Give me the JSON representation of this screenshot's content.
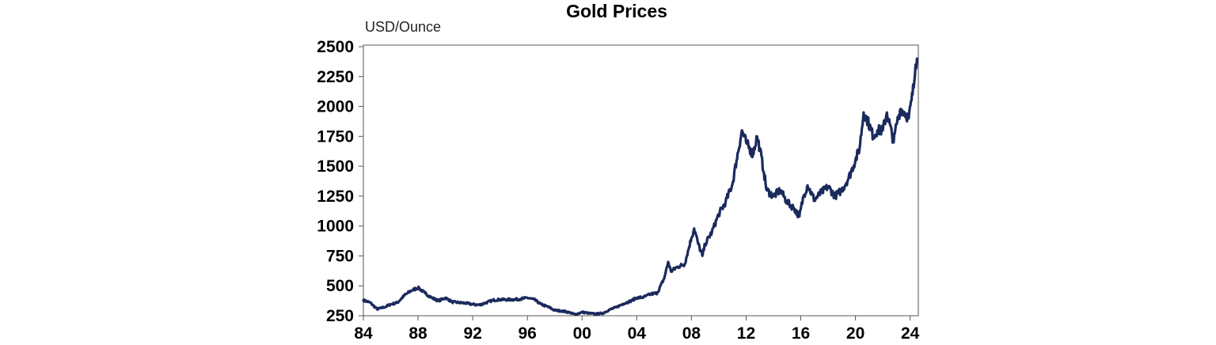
{
  "chart_data": {
    "type": "line",
    "title": "Gold Prices",
    "ylabel": "USD/Ounce",
    "xlabel": "",
    "xlim": [
      1984,
      2024.6
    ],
    "ylim": [
      250,
      2500
    ],
    "y_ticks": [
      250,
      500,
      750,
      1000,
      1250,
      1500,
      1750,
      2000,
      2250,
      2500
    ],
    "y_tick_labels": [
      "250",
      "500",
      "750",
      "1000",
      "1250",
      "1500",
      "1750",
      "2000",
      "2250",
      "2500"
    ],
    "x_ticks": [
      1984,
      1988,
      1992,
      1996,
      2000,
      2004,
      2008,
      2012,
      2016,
      2020,
      2024
    ],
    "x_tick_labels": [
      "84",
      "88",
      "92",
      "96",
      "00",
      "04",
      "08",
      "12",
      "16",
      "20",
      "24"
    ],
    "grid": false,
    "legend": "none",
    "line_color": "#1b2a5c",
    "series": [
      {
        "name": "Gold price",
        "x": [
          1984.0,
          1984.5,
          1985.0,
          1985.5,
          1986.0,
          1986.5,
          1987.0,
          1987.5,
          1988.0,
          1988.5,
          1989.0,
          1989.5,
          1990.0,
          1990.5,
          1991.0,
          1991.5,
          1992.0,
          1992.5,
          1993.0,
          1993.5,
          1994.0,
          1994.5,
          1995.0,
          1995.5,
          1996.0,
          1996.5,
          1997.0,
          1997.5,
          1998.0,
          1998.5,
          1999.0,
          1999.5,
          2000.0,
          2000.5,
          2001.0,
          2001.5,
          2002.0,
          2002.5,
          2003.0,
          2003.5,
          2004.0,
          2004.5,
          2005.0,
          2005.5,
          2006.0,
          2006.3,
          2006.5,
          2007.0,
          2007.5,
          2008.0,
          2008.2,
          2008.5,
          2008.8,
          2009.0,
          2009.5,
          2010.0,
          2010.5,
          2011.0,
          2011.3,
          2011.7,
          2012.0,
          2012.5,
          2012.8,
          2013.0,
          2013.3,
          2013.5,
          2014.0,
          2014.5,
          2015.0,
          2015.5,
          2015.9,
          2016.2,
          2016.5,
          2017.0,
          2017.5,
          2018.0,
          2018.5,
          2019.0,
          2019.5,
          2020.0,
          2020.3,
          2020.6,
          2020.9,
          2021.3,
          2021.6,
          2022.0,
          2022.3,
          2022.8,
          2023.0,
          2023.3,
          2023.6,
          2023.9,
          2024.1,
          2024.3,
          2024.4,
          2024.5
        ],
        "values": [
          380,
          360,
          305,
          320,
          345,
          360,
          420,
          460,
          485,
          440,
          400,
          375,
          400,
          365,
          360,
          355,
          345,
          340,
          360,
          380,
          385,
          385,
          385,
          390,
          400,
          385,
          345,
          325,
          295,
          290,
          280,
          260,
          280,
          270,
          265,
          270,
          300,
          320,
          350,
          370,
          400,
          405,
          430,
          440,
          560,
          700,
          620,
          660,
          680,
          900,
          980,
          850,
          750,
          850,
          950,
          1100,
          1200,
          1350,
          1550,
          1800,
          1700,
          1600,
          1750,
          1650,
          1450,
          1300,
          1250,
          1300,
          1200,
          1150,
          1080,
          1250,
          1340,
          1220,
          1280,
          1330,
          1250,
          1300,
          1400,
          1550,
          1650,
          1950,
          1880,
          1750,
          1800,
          1800,
          1950,
          1700,
          1850,
          1980,
          1950,
          1900,
          2050,
          2200,
          2350,
          2400
        ]
      }
    ]
  }
}
